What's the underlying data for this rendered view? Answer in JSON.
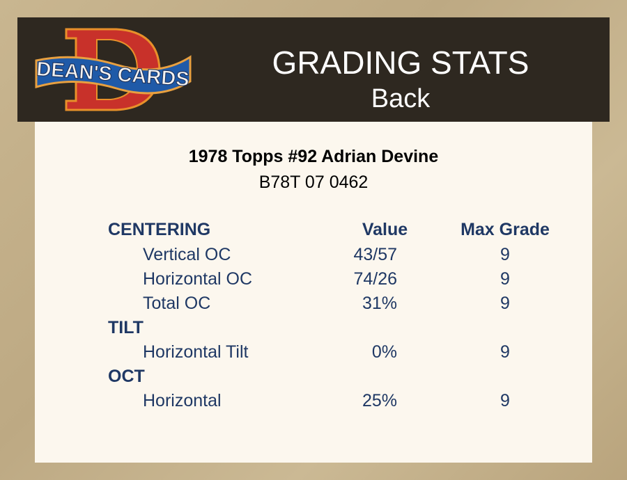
{
  "header": {
    "logo_text": "DEAN'S CARDS",
    "title": "GRADING STATS",
    "subtitle": "Back"
  },
  "card": {
    "title": "1978 Topps #92 Adrian Devine",
    "serial": "B78T 07 0462"
  },
  "table": {
    "columns": {
      "value": "Value",
      "max": "Max Grade"
    },
    "sections": [
      {
        "heading": "CENTERING",
        "rows": [
          {
            "label": "Vertical OC",
            "value": "43/57",
            "max": "9"
          },
          {
            "label": "Horizontal OC",
            "value": "74/26",
            "max": "9"
          },
          {
            "label": "Total OC",
            "value": "31%",
            "max": "9"
          }
        ]
      },
      {
        "heading": "TILT",
        "rows": [
          {
            "label": "Horizontal Tilt",
            "value": "0%",
            "max": "9"
          }
        ]
      },
      {
        "heading": "OCT",
        "rows": [
          {
            "label": "Horizontal",
            "value": "25%",
            "max": "9"
          }
        ]
      }
    ]
  },
  "colors": {
    "text": "#1f3864",
    "header_bg": "#2e2820",
    "panel_bg": "#fcf7ee"
  }
}
